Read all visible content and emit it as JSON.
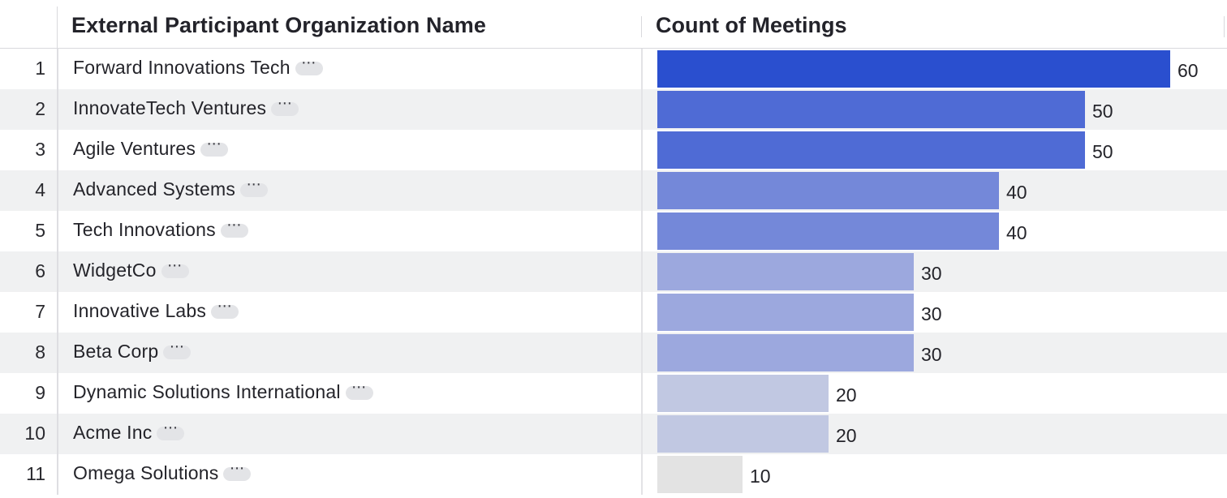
{
  "header": {
    "col_org": "External Participant Organization Name",
    "col_count": "Count of Meetings"
  },
  "colors": {
    "bar_60": "#2a4fcf",
    "bar_50": "#4f6bd5",
    "bar_40": "#7488d9",
    "bar_30": "#9ca8de",
    "bar_20": "#c1c8e2",
    "bar_10": "#e3e3e3"
  },
  "more_icon": "ellipsis-icon",
  "chart_data": {
    "type": "bar",
    "orientation": "horizontal",
    "categories": [
      "Forward Innovations Tech",
      "InnovateTech Ventures",
      "Agile Ventures",
      "Advanced Systems",
      "Tech Innovations",
      "WidgetCo",
      "Innovative Labs",
      "Beta Corp",
      "Dynamic Solutions International",
      "Acme Inc",
      "Omega Solutions"
    ],
    "values": [
      60,
      50,
      50,
      40,
      40,
      30,
      30,
      30,
      20,
      20,
      10
    ],
    "xlim": [
      0,
      60
    ]
  },
  "rows": [
    {
      "index": "1",
      "org": "Forward Innovations Tech",
      "count": "60"
    },
    {
      "index": "2",
      "org": "InnovateTech Ventures",
      "count": "50"
    },
    {
      "index": "3",
      "org": "Agile Ventures",
      "count": "50"
    },
    {
      "index": "4",
      "org": "Advanced Systems",
      "count": "40"
    },
    {
      "index": "5",
      "org": "Tech Innovations",
      "count": "40"
    },
    {
      "index": "6",
      "org": "WidgetCo",
      "count": "30"
    },
    {
      "index": "7",
      "org": "Innovative Labs",
      "count": "30"
    },
    {
      "index": "8",
      "org": "Beta Corp",
      "count": "30"
    },
    {
      "index": "9",
      "org": "Dynamic Solutions International",
      "count": "20"
    },
    {
      "index": "10",
      "org": "Acme Inc",
      "count": "20"
    },
    {
      "index": "11",
      "org": "Omega Solutions",
      "count": "10"
    }
  ]
}
